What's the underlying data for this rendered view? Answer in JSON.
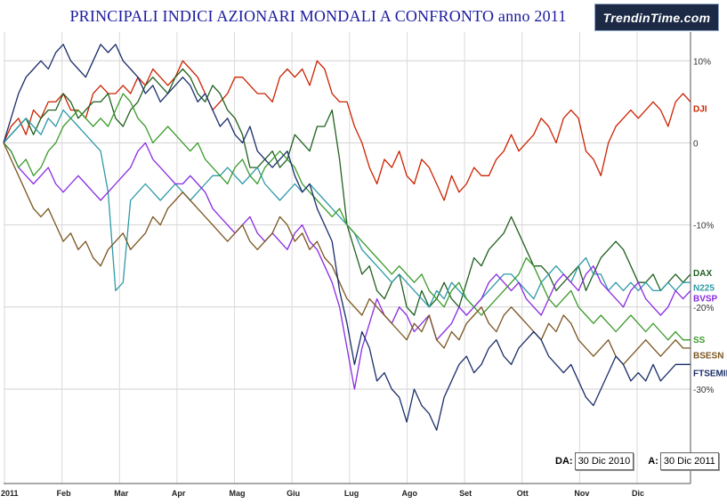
{
  "chart_data": {
    "type": "line",
    "title": "PRINCIPALI INDICI AZIONARI MONDALI A CONFRONTO anno 2011",
    "x_ticks": [
      "2011",
      "Feb",
      "Mar",
      "Apr",
      "Mag",
      "Giu",
      "Lug",
      "Ago",
      "Set",
      "Ott",
      "Nov",
      "Dic"
    ],
    "y_ticks": [
      {
        "value": 10,
        "label": "10%"
      },
      {
        "value": 0,
        "label": "0"
      },
      {
        "value": -10,
        "label": "-10%"
      },
      {
        "value": -20,
        "label": "-20%"
      },
      {
        "value": -30,
        "label": "-30%"
      }
    ],
    "ylim": [
      -41.5,
      13.5
    ],
    "grid": {
      "horizontal": true,
      "vertical": true
    },
    "series": [
      {
        "name": "DJI",
        "color": "#cc2200",
        "label_y": 4.2,
        "values": [
          0,
          2,
          3,
          1,
          4,
          3,
          5,
          5,
          6,
          4,
          4,
          3,
          6,
          7,
          6,
          6,
          7,
          6,
          8,
          7,
          9,
          8,
          7,
          8,
          10,
          9,
          8,
          6,
          4,
          5,
          6,
          8,
          8,
          7,
          6,
          6,
          5,
          8,
          9,
          8,
          9,
          7,
          10,
          9,
          6,
          5,
          5,
          2,
          0,
          -3,
          -5,
          -2,
          -3,
          -1,
          -4,
          -5,
          -2,
          -3,
          -5,
          -7,
          -4,
          -6,
          -5,
          -3,
          -4,
          -4,
          -2,
          -1,
          1,
          -1,
          0,
          1,
          3,
          2,
          0,
          3,
          4,
          3,
          -1,
          -2,
          -4,
          0,
          2,
          3,
          4,
          3,
          4,
          5,
          4,
          2,
          5,
          6,
          5
        ]
      },
      {
        "name": "DAX",
        "color": "#206020",
        "label_y": -15.8,
        "values": [
          0,
          1,
          2,
          3,
          1,
          3,
          4,
          4,
          6,
          5,
          3,
          4,
          5,
          5,
          6,
          3,
          2,
          4,
          5,
          7,
          8,
          7,
          6,
          8,
          9,
          8,
          6,
          5,
          7,
          6,
          4,
          3,
          1,
          -3,
          -3,
          -2,
          -1,
          -3,
          -2,
          1,
          0,
          -1,
          2,
          2,
          4,
          -2,
          -10,
          -13,
          -16,
          -15,
          -18,
          -19,
          -17,
          -16,
          -20,
          -21,
          -18,
          -20,
          -19,
          -17,
          -19,
          -20,
          -17,
          -14,
          -15,
          -13,
          -12,
          -11,
          -9,
          -11,
          -13,
          -15,
          -15,
          -16,
          -18,
          -17,
          -16,
          -15,
          -18,
          -16,
          -14,
          -13,
          -12,
          -13,
          -15,
          -17,
          -17,
          -16,
          -18,
          -17,
          -16,
          -17,
          -16
        ]
      },
      {
        "name": "N225",
        "color": "#2e9aa8",
        "label_y": -17.6,
        "values": [
          0,
          1,
          2,
          3,
          2,
          1,
          3,
          2,
          4,
          3,
          2,
          1,
          0,
          -1,
          -6,
          -18,
          -17,
          -7,
          -6,
          -5,
          -6,
          -7,
          -6,
          -5,
          -6,
          -7,
          -6,
          -5,
          -4,
          -4,
          -3,
          -4,
          -5,
          -4,
          -3,
          -5,
          -6,
          -7,
          -6,
          -5,
          -6,
          -5,
          -6,
          -7,
          -8,
          -9,
          -10,
          -11,
          -13,
          -14,
          -15,
          -16,
          -17,
          -16,
          -17,
          -18,
          -19,
          -20,
          -18,
          -19,
          -17,
          -18,
          -19,
          -20,
          -19,
          -18,
          -17,
          -16,
          -16,
          -17,
          -18,
          -19,
          -17,
          -16,
          -15,
          -16,
          -17,
          -15,
          -14,
          -16,
          -16,
          -18,
          -17,
          -18,
          -17,
          -18,
          -17,
          -18,
          -18,
          -17,
          -18,
          -17,
          -17
        ]
      },
      {
        "name": "BVSP",
        "color": "#8a2be2",
        "label_y": -18.9,
        "values": [
          0,
          -1,
          -3,
          -4,
          -5,
          -4,
          -3,
          -5,
          -6,
          -5,
          -4,
          -5,
          -6,
          -7,
          -6,
          -5,
          -4,
          -3,
          -1,
          0,
          -2,
          -3,
          -4,
          -5,
          -5,
          -4,
          -5,
          -6,
          -8,
          -9,
          -10,
          -11,
          -10,
          -9,
          -11,
          -12,
          -11,
          -12,
          -13,
          -11,
          -10,
          -12,
          -13,
          -15,
          -17,
          -20,
          -25,
          -30,
          -25,
          -22,
          -19,
          -21,
          -22,
          -20,
          -21,
          -23,
          -22,
          -21,
          -24,
          -23,
          -22,
          -20,
          -21,
          -20,
          -19,
          -17,
          -16,
          -17,
          -18,
          -17,
          -19,
          -20,
          -21,
          -19,
          -17,
          -16,
          -17,
          -18,
          -16,
          -15,
          -17,
          -18,
          -19,
          -20,
          -18,
          -17,
          -19,
          -20,
          -21,
          -20,
          -18,
          -19,
          -18
        ]
      },
      {
        "name": "SS",
        "color": "#3a9a2a",
        "label_y": -23.9,
        "values": [
          0,
          -1,
          -3,
          -2,
          -4,
          -3,
          -1,
          0,
          2,
          3,
          4,
          3,
          2,
          3,
          2,
          4,
          6,
          5,
          3,
          2,
          0,
          1,
          2,
          1,
          0,
          -1,
          0,
          -2,
          -3,
          -4,
          -5,
          -3,
          -2,
          -4,
          -5,
          -3,
          -2,
          -1,
          -2,
          -3,
          -5,
          -6,
          -7,
          -8,
          -9,
          -8,
          -10,
          -11,
          -12,
          -13,
          -14,
          -15,
          -16,
          -15,
          -16,
          -17,
          -16,
          -18,
          -19,
          -20,
          -18,
          -17,
          -19,
          -20,
          -21,
          -20,
          -19,
          -18,
          -17,
          -16,
          -14,
          -15,
          -17,
          -19,
          -20,
          -19,
          -18,
          -20,
          -21,
          -22,
          -21,
          -22,
          -23,
          -22,
          -21,
          -22,
          -23,
          -22,
          -23,
          -24,
          -23,
          -24,
          -24
        ]
      },
      {
        "name": "BSESN",
        "color": "#7a5520",
        "label_y": -25.8,
        "values": [
          0,
          -2,
          -4,
          -6,
          -8,
          -9,
          -8,
          -10,
          -12,
          -11,
          -13,
          -12,
          -14,
          -15,
          -13,
          -12,
          -11,
          -13,
          -12,
          -11,
          -9,
          -10,
          -8,
          -7,
          -6,
          -7,
          -8,
          -9,
          -10,
          -11,
          -12,
          -11,
          -10,
          -12,
          -13,
          -12,
          -11,
          -9,
          -10,
          -12,
          -11,
          -13,
          -12,
          -14,
          -15,
          -17,
          -19,
          -20,
          -21,
          -19,
          -20,
          -21,
          -22,
          -23,
          -24,
          -22,
          -23,
          -21,
          -24,
          -25,
          -23,
          -24,
          -22,
          -21,
          -20,
          -22,
          -23,
          -21,
          -20,
          -21,
          -22,
          -23,
          -24,
          -22,
          -23,
          -21,
          -22,
          -24,
          -25,
          -26,
          -25,
          -24,
          -26,
          -27,
          -26,
          -25,
          -24,
          -25,
          -26,
          -25,
          -24,
          -25,
          -25
        ]
      },
      {
        "name": "FTSEMIB",
        "color": "#1a2e6a",
        "label_y": -28,
        "values": [
          0,
          3,
          6,
          8,
          9,
          10,
          9,
          11,
          12,
          10,
          9,
          8,
          10,
          12,
          11,
          12,
          10,
          9,
          8,
          6,
          7,
          5,
          6,
          7,
          8,
          7,
          5,
          6,
          4,
          2,
          3,
          1,
          0,
          2,
          -1,
          -2,
          -3,
          -2,
          -1,
          -4,
          -6,
          -5,
          -8,
          -10,
          -12,
          -18,
          -22,
          -27,
          -23,
          -25,
          -29,
          -28,
          -30,
          -31,
          -34,
          -30,
          -32,
          -33,
          -35,
          -31,
          -29,
          -27,
          -26,
          -28,
          -27,
          -25,
          -24,
          -26,
          -27,
          -25,
          -24,
          -23,
          -24,
          -26,
          -27,
          -28,
          -27,
          -29,
          -31,
          -32,
          -30,
          -28,
          -26,
          -27,
          -29,
          -28,
          -29,
          -27,
          -29,
          -28,
          -27,
          -27,
          -27
        ]
      }
    ]
  },
  "logo_text": "TrendinTime.com",
  "date_range": {
    "from_label": "DA:",
    "from_value": "30 Dic 2010",
    "to_label": "A:",
    "to_value": "30 Dic 2011"
  }
}
